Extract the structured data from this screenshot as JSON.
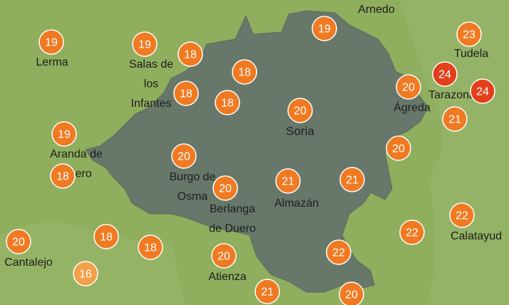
{
  "markers": [
    "19",
    "19",
    "18",
    "19",
    "23",
    "18",
    "18",
    "18",
    "20",
    "24",
    "24",
    "20",
    "21",
    "19",
    "20",
    "20",
    "18",
    "21",
    "21",
    "20",
    "22",
    "22",
    "20",
    "18",
    "18",
    "22",
    "20",
    "16",
    "21",
    "20"
  ],
  "places": {
    "arnedo": [
      "Arnedo"
    ],
    "lerma": [
      "Lerma"
    ],
    "salas": [
      "Salas de",
      "los",
      "Infantes"
    ],
    "tudela": [
      "Tudela"
    ],
    "tarazona": [
      "Tarazona"
    ],
    "agreda": [
      "Ágreda"
    ],
    "soria": [
      "Soria"
    ],
    "aranda": [
      "Aranda de",
      "Duero"
    ],
    "burgo": [
      "Burgo de",
      "Osma"
    ],
    "almazan": [
      "Almazán"
    ],
    "berlanga": [
      "Berlanga",
      "de Duero"
    ],
    "calatayud": [
      "Calatayud"
    ],
    "cantalejo": [
      "Cantalejo"
    ],
    "atienza": [
      "Atienza"
    ]
  }
}
